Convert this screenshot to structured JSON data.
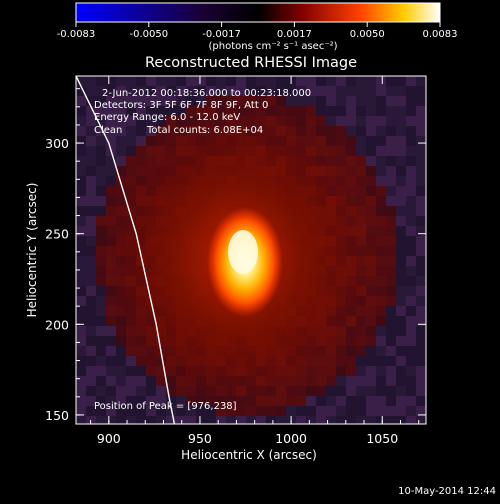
{
  "chart_data": {
    "type": "heatmap",
    "title": "Reconstructed RHESSI Image",
    "xlabel": "Heliocentric X (arcsec)",
    "ylabel": "Heliocentric Y (arcsec)",
    "xlim": [
      882,
      1074
    ],
    "ylim": [
      145,
      337
    ],
    "x_ticks": [
      "900",
      "950",
      "1000",
      "1050"
    ],
    "x_tick_values": [
      900,
      950,
      1000,
      1050
    ],
    "y_ticks": [
      "150",
      "200",
      "250",
      "300"
    ],
    "y_tick_values": [
      150,
      200,
      250,
      300
    ],
    "colorbar": {
      "range": [
        -0.0083,
        0.0083
      ],
      "tick_labels": [
        "-0.0083",
        "-0.0050",
        "-0.0017",
        "0.0017",
        "0.0050",
        "0.0083"
      ],
      "unit_label": "(photons cm⁻² s⁻¹ asec⁻²)",
      "colors": [
        "#0000ff",
        "#1a0033",
        "#000000",
        "#800000",
        "#ff4000",
        "#ffcc00",
        "#ffffff"
      ]
    },
    "annotations": {
      "time_range": "2-Jun-2012 00:18:36.000 to 00:23:18.000",
      "detectors": "Detectors: 3F 5F 6F 7F 8F 9F, Att 0",
      "energy": "Energy Range: 6.0 - 12.0 keV",
      "method": "Clean",
      "total_counts": "Total counts: 6.08E+04",
      "peak": "Position of Peak = [976,238]"
    },
    "peak": {
      "x": 976,
      "y": 238
    },
    "limb_curve": [
      [
        882,
        337
      ],
      [
        900,
        300
      ],
      [
        915,
        250
      ],
      [
        926,
        200
      ],
      [
        933,
        160
      ],
      [
        936,
        145
      ]
    ]
  },
  "footer": {
    "timestamp": "10-May-2014 12:44"
  }
}
